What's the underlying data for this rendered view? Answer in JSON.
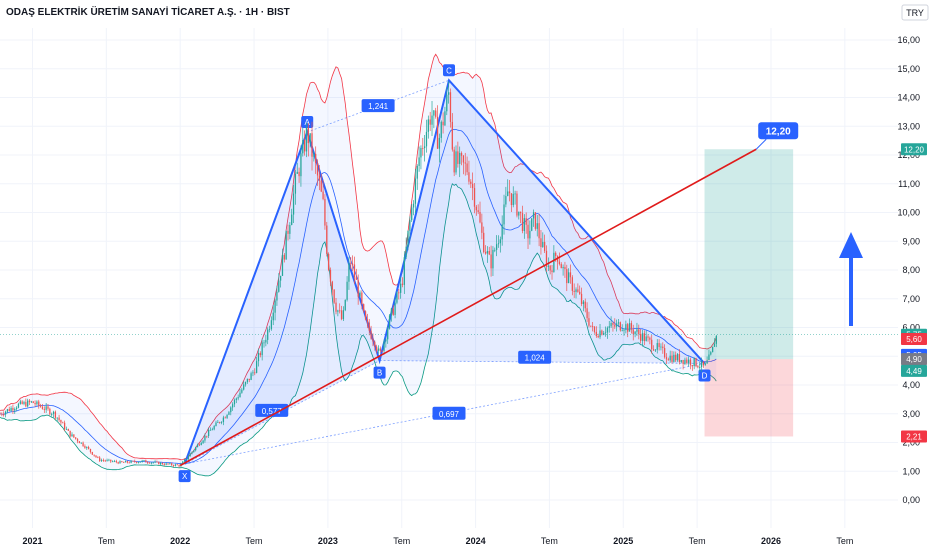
{
  "header": {
    "title": "ODAŞ ELEKTRİK ÜRETİM SANAYİ TİCARET A.Ş. · 1H · BIST",
    "currency": "TRY"
  },
  "chart_data": {
    "type": "candlestick",
    "title": "ODAŞ ELEKTRİK ÜRETİM SANAYİ TİCARET A.Ş. · 1H · BIST",
    "y_ticks": [
      "0,00",
      "1,00",
      "2,00",
      "3,00",
      "4,00",
      "5,00",
      "6,00",
      "7,00",
      "8,00",
      "9,00",
      "10,00",
      "11,00",
      "12,00",
      "13,00",
      "14,00",
      "15,00",
      "16,00"
    ],
    "ylim": [
      0,
      16
    ],
    "x_ticks": [
      {
        "label": "2021",
        "year": true,
        "t": 2021.0
      },
      {
        "label": "Tem",
        "year": false,
        "t": 2021.5
      },
      {
        "label": "2022",
        "year": true,
        "t": 2022.0
      },
      {
        "label": "Tem",
        "year": false,
        "t": 2022.5
      },
      {
        "label": "2023",
        "year": true,
        "t": 2023.0
      },
      {
        "label": "Tem",
        "year": false,
        "t": 2023.5
      },
      {
        "label": "2024",
        "year": true,
        "t": 2024.0
      },
      {
        "label": "Tem",
        "year": false,
        "t": 2024.5
      },
      {
        "label": "2025",
        "year": true,
        "t": 2025.0
      },
      {
        "label": "Tem",
        "year": false,
        "t": 2025.5
      },
      {
        "label": "2026",
        "year": true,
        "t": 2026.0
      },
      {
        "label": "Tem",
        "year": false,
        "t": 2026.5
      }
    ],
    "xlim": [
      2020.78,
      2026.86
    ],
    "close_path": [
      [
        2020.78,
        3.0
      ],
      [
        2020.9,
        3.3
      ],
      [
        2021.0,
        3.4
      ],
      [
        2021.15,
        3.0
      ],
      [
        2021.25,
        2.3
      ],
      [
        2021.35,
        1.9
      ],
      [
        2021.45,
        1.4
      ],
      [
        2021.6,
        1.3
      ],
      [
        2021.75,
        1.35
      ],
      [
        2021.9,
        1.25
      ],
      [
        2022.0,
        1.2
      ],
      [
        2022.1,
        1.8
      ],
      [
        2022.2,
        2.4
      ],
      [
        2022.3,
        2.9
      ],
      [
        2022.4,
        3.7
      ],
      [
        2022.5,
        4.5
      ],
      [
        2022.6,
        6.0
      ],
      [
        2022.7,
        8.5
      ],
      [
        2022.78,
        11.0
      ],
      [
        2022.86,
        12.8
      ],
      [
        2022.92,
        11.5
      ],
      [
        2022.97,
        10.2
      ],
      [
        2023.0,
        8.3
      ],
      [
        2023.05,
        6.8
      ],
      [
        2023.1,
        6.2
      ],
      [
        2023.15,
        8.4
      ],
      [
        2023.2,
        7.4
      ],
      [
        2023.25,
        6.2
      ],
      [
        2023.32,
        5.5
      ],
      [
        2023.35,
        5.0
      ],
      [
        2023.42,
        6.3
      ],
      [
        2023.5,
        7.5
      ],
      [
        2023.55,
        9.5
      ],
      [
        2023.62,
        12.0
      ],
      [
        2023.7,
        13.5
      ],
      [
        2023.75,
        12.5
      ],
      [
        2023.82,
        14.2
      ],
      [
        2023.85,
        11.8
      ],
      [
        2023.95,
        11.5
      ],
      [
        2024.0,
        10.4
      ],
      [
        2024.05,
        9.0
      ],
      [
        2024.1,
        8.2
      ],
      [
        2024.18,
        9.6
      ],
      [
        2024.22,
        10.8
      ],
      [
        2024.28,
        10.2
      ],
      [
        2024.35,
        9.2
      ],
      [
        2024.4,
        9.8
      ],
      [
        2024.45,
        8.8
      ],
      [
        2024.5,
        8.0
      ],
      [
        2024.55,
        8.6
      ],
      [
        2024.6,
        7.9
      ],
      [
        2024.7,
        7.1
      ],
      [
        2024.8,
        5.8
      ],
      [
        2024.9,
        6.0
      ],
      [
        2025.0,
        6.1
      ],
      [
        2025.1,
        5.8
      ],
      [
        2025.2,
        5.4
      ],
      [
        2025.3,
        5.0
      ],
      [
        2025.4,
        4.9
      ],
      [
        2025.5,
        4.75
      ],
      [
        2025.55,
        4.6
      ],
      [
        2025.6,
        5.1
      ],
      [
        2025.62,
        5.6
      ],
      [
        2025.64,
        5.75
      ]
    ],
    "harmonic": {
      "points": [
        {
          "label": "X",
          "t": 2022.03,
          "y": 1.25
        },
        {
          "label": "A",
          "t": 2022.86,
          "y": 12.8
        },
        {
          "label": "B",
          "t": 2023.35,
          "y": 4.85
        },
        {
          "label": "C",
          "t": 2023.82,
          "y": 14.6
        },
        {
          "label": "D",
          "t": 2025.55,
          "y": 4.75
        }
      ],
      "ratios": [
        {
          "label": "1,241",
          "t": 2023.34,
          "y": 13.7
        },
        {
          "label": "0,577",
          "t": 2022.62,
          "y": 3.1
        },
        {
          "label": "1,024",
          "t": 2024.4,
          "y": 4.95
        },
        {
          "label": "0,697",
          "t": 2023.82,
          "y": 3.0
        }
      ]
    },
    "trendline": {
      "t1": 2022.0,
      "y1": 1.2,
      "t2": 2025.9,
      "y2": 12.2
    },
    "target_label": "12,20",
    "position": {
      "t_start": 2025.55,
      "t_end": 2026.15,
      "target": 12.2,
      "entry": 4.9,
      "stop": 2.21
    },
    "price_tags": [
      {
        "label": "12,20",
        "value": 12.2,
        "color": "#26a69a"
      },
      {
        "label": "5,75",
        "value": 5.75,
        "color": "#26a69a"
      },
      {
        "label": "5,60",
        "value": 5.6,
        "color": "#f23645"
      },
      {
        "label": "5,05",
        "value": 5.05,
        "color": "#2962ff"
      },
      {
        "label": "4,90",
        "value": 4.9,
        "color": "#787b86"
      },
      {
        "label": "4,49",
        "value": 4.49,
        "color": "#26a69a"
      },
      {
        "label": "2,21",
        "value": 2.21,
        "color": "#f23645"
      }
    ],
    "colors": {
      "up": "#26a69a",
      "down": "#ef5350",
      "harmonic": "#2962ff",
      "harmonic_fill": "#2962ff",
      "trend": "#e01b1b",
      "band_upper": "#f23645",
      "band_lower": "#089981",
      "band_mid": "#2962ff",
      "profit": "#26a69a",
      "loss": "#f23645",
      "arrow": "#2962ff"
    }
  }
}
